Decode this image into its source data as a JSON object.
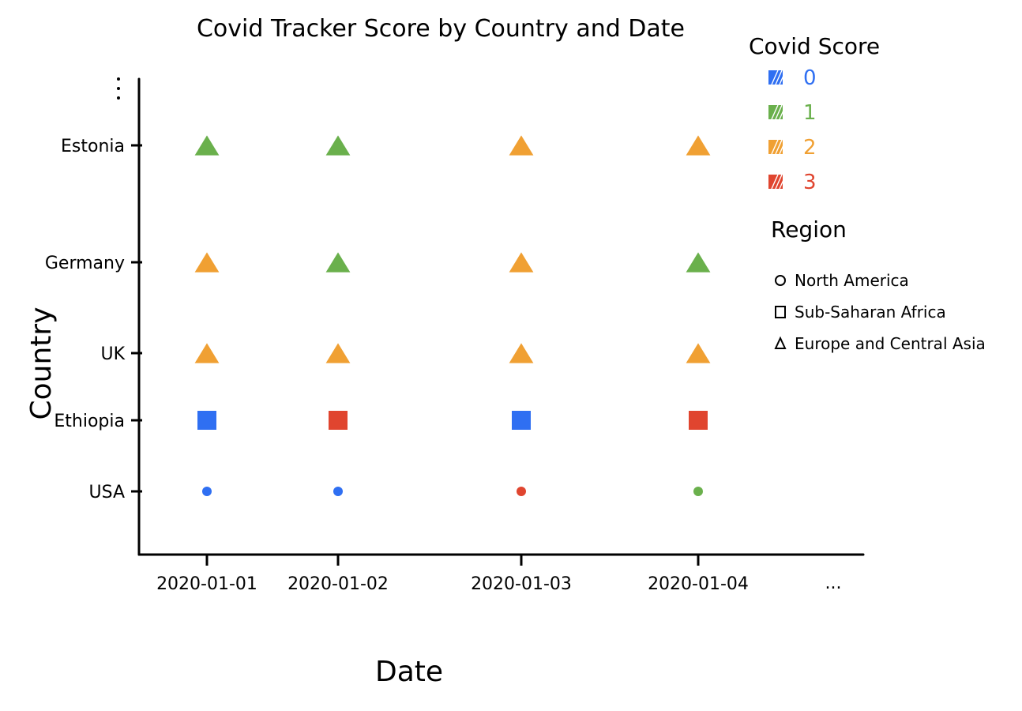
{
  "chart_data": {
    "type": "scatter",
    "title": "Covid Tracker Score by Country and Date",
    "xlabel": "Date",
    "ylabel": "Country",
    "x_categories": [
      "2020-01-01",
      "2020-01-02",
      "2020-01-03",
      "2020-01-04"
    ],
    "x_continuation": "...",
    "y_categories": [
      "USA",
      "Ethiopia",
      "UK",
      "Germany",
      "Estonia"
    ],
    "y_continuation": "...",
    "score_legend": {
      "title": "Covid Score",
      "items": [
        {
          "score": 0,
          "label": "0",
          "color": "#2f6ff2"
        },
        {
          "score": 1,
          "label": "1",
          "color": "#6ab04c"
        },
        {
          "score": 2,
          "label": "2",
          "color": "#f0a033"
        },
        {
          "score": 3,
          "label": "3",
          "color": "#e0452f"
        }
      ]
    },
    "region_legend": {
      "title": "Region",
      "items": [
        {
          "region": "North America",
          "label": "North America",
          "shape": "circle"
        },
        {
          "region": "Sub-Saharan Africa",
          "label": "Sub-Saharan Africa",
          "shape": "square"
        },
        {
          "region": "Europe and Central Asia",
          "label": "Europe and Central Asia",
          "shape": "triangle"
        }
      ]
    },
    "points": [
      {
        "country": "Estonia",
        "date": "2020-01-01",
        "score": 1,
        "region": "Europe and Central Asia"
      },
      {
        "country": "Estonia",
        "date": "2020-01-02",
        "score": 1,
        "region": "Europe and Central Asia"
      },
      {
        "country": "Estonia",
        "date": "2020-01-03",
        "score": 2,
        "region": "Europe and Central Asia"
      },
      {
        "country": "Estonia",
        "date": "2020-01-04",
        "score": 2,
        "region": "Europe and Central Asia"
      },
      {
        "country": "Germany",
        "date": "2020-01-01",
        "score": 2,
        "region": "Europe and Central Asia"
      },
      {
        "country": "Germany",
        "date": "2020-01-02",
        "score": 1,
        "region": "Europe and Central Asia"
      },
      {
        "country": "Germany",
        "date": "2020-01-03",
        "score": 2,
        "region": "Europe and Central Asia"
      },
      {
        "country": "Germany",
        "date": "2020-01-04",
        "score": 1,
        "region": "Europe and Central Asia"
      },
      {
        "country": "UK",
        "date": "2020-01-01",
        "score": 2,
        "region": "Europe and Central Asia"
      },
      {
        "country": "UK",
        "date": "2020-01-02",
        "score": 2,
        "region": "Europe and Central Asia"
      },
      {
        "country": "UK",
        "date": "2020-01-03",
        "score": 2,
        "region": "Europe and Central Asia"
      },
      {
        "country": "UK",
        "date": "2020-01-04",
        "score": 2,
        "region": "Europe and Central Asia"
      },
      {
        "country": "Ethiopia",
        "date": "2020-01-01",
        "score": 0,
        "region": "Sub-Saharan Africa"
      },
      {
        "country": "Ethiopia",
        "date": "2020-01-02",
        "score": 3,
        "region": "Sub-Saharan Africa"
      },
      {
        "country": "Ethiopia",
        "date": "2020-01-03",
        "score": 0,
        "region": "Sub-Saharan Africa"
      },
      {
        "country": "Ethiopia",
        "date": "2020-01-04",
        "score": 3,
        "region": "Sub-Saharan Africa"
      },
      {
        "country": "USA",
        "date": "2020-01-01",
        "score": 0,
        "region": "North America"
      },
      {
        "country": "USA",
        "date": "2020-01-02",
        "score": 0,
        "region": "North America"
      },
      {
        "country": "USA",
        "date": "2020-01-03",
        "score": 3,
        "region": "North America"
      },
      {
        "country": "USA",
        "date": "2020-01-04",
        "score": 1,
        "region": "North America"
      }
    ]
  }
}
